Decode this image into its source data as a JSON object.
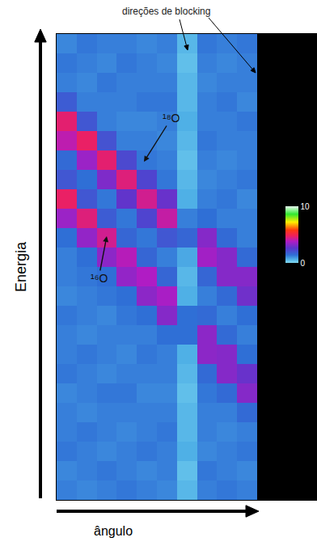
{
  "chart_data": {
    "type": "heatmap",
    "xlabel": "ângulo",
    "ylabel": "Energia",
    "annotations": [
      "direções de blocking",
      "¹⁸O",
      "¹⁶O"
    ],
    "x": [
      0.5,
      1.5,
      2.5,
      3.5,
      4.5,
      5.5,
      6.5,
      7.5,
      8.5,
      9.5
    ],
    "y": [
      0.5,
      1.5,
      2.5,
      3.5,
      4.5,
      5.5,
      6.5,
      7.5,
      8.5,
      9.5,
      10.5,
      11.5,
      12.5,
      13.5,
      14.5,
      15.5,
      16.5,
      17.5,
      18.5,
      19.5,
      20.5,
      21.5,
      22.5,
      23.5
    ],
    "z": [
      [
        1.2,
        1.1,
        1.2,
        1.3,
        1.2,
        1.1,
        0.5,
        1.2,
        1.3,
        1.2
      ],
      [
        1.1,
        1.2,
        1.3,
        1.2,
        1.1,
        1.2,
        0.4,
        1.3,
        1.2,
        1.1
      ],
      [
        1.3,
        1.2,
        1.1,
        1.2,
        1.3,
        1.2,
        0.6,
        1.1,
        1.2,
        1.3
      ],
      [
        1.2,
        1.3,
        1.2,
        1.1,
        1.2,
        1.3,
        0.5,
        1.2,
        1.1,
        1.2
      ],
      [
        1.2,
        1.1,
        1.2,
        1.2,
        1.2,
        1.2,
        0.5,
        1.2,
        1.2,
        1.5
      ],
      [
        1.1,
        1.2,
        1.3,
        1.3,
        1.1,
        1.1,
        0.4,
        1.3,
        1.5,
        3.2
      ],
      [
        1.3,
        1.2,
        1.1,
        1.2,
        1.2,
        1.2,
        0.5,
        1.5,
        3.2,
        2.8
      ],
      [
        1.2,
        1.3,
        1.2,
        1.1,
        1.3,
        1.2,
        0.6,
        3.3,
        3.2,
        1.4
      ],
      [
        1.2,
        1.1,
        1.2,
        1.2,
        1.2,
        1.4,
        1.4,
        3.3,
        1.5,
        1.2
      ],
      [
        1.3,
        1.2,
        1.1,
        1.3,
        1.4,
        3.2,
        1.4,
        1.5,
        1.2,
        1.4
      ],
      [
        1.1,
        1.2,
        1.3,
        1.4,
        3.3,
        3.7,
        0.6,
        1.2,
        1.5,
        2.9
      ],
      [
        1.2,
        1.3,
        1.4,
        3.4,
        3.8,
        1.6,
        0.5,
        1.6,
        3.2,
        3.2
      ],
      [
        1.2,
        1.4,
        3.3,
        3.9,
        1.6,
        1.2,
        0.7,
        3.6,
        3.2,
        1.5
      ],
      [
        1.4,
        3.4,
        4.3,
        1.6,
        1.3,
        1.9,
        1.6,
        3.2,
        1.5,
        1.2
      ],
      [
        3.5,
        4.5,
        1.8,
        1.3,
        2.3,
        4.1,
        1.2,
        1.4,
        1.2,
        1.2
      ],
      [
        4.7,
        1.9,
        1.3,
        2.7,
        4.3,
        2.8,
        0.6,
        1.2,
        1.3,
        1.1
      ],
      [
        1.9,
        1.4,
        3.1,
        4.5,
        2.3,
        1.3,
        0.5,
        1.1,
        1.2,
        1.3
      ],
      [
        1.5,
        3.5,
        4.6,
        2.2,
        1.3,
        1.2,
        0.4,
        1.2,
        1.1,
        1.2
      ],
      [
        4.0,
        4.7,
        2.0,
        1.2,
        1.2,
        1.1,
        0.5,
        1.3,
        1.2,
        1.2
      ],
      [
        4.6,
        1.9,
        1.2,
        1.1,
        1.1,
        1.2,
        0.6,
        1.2,
        1.2,
        1.3
      ],
      [
        1.8,
        1.2,
        1.2,
        1.2,
        1.3,
        1.3,
        0.5,
        1.2,
        1.3,
        1.1
      ],
      [
        1.2,
        1.1,
        1.3,
        1.2,
        1.2,
        1.2,
        0.5,
        1.1,
        1.2,
        1.2
      ],
      [
        1.3,
        1.2,
        1.1,
        1.3,
        1.2,
        1.1,
        0.4,
        1.2,
        1.1,
        1.2
      ],
      [
        1.1,
        1.3,
        1.2,
        1.2,
        1.1,
        1.2,
        0.5,
        1.3,
        1.2,
        1.3
      ]
    ],
    "xlim": [
      0,
      13
    ],
    "ylim": [
      0,
      24
    ],
    "xticks": [],
    "yticks": [],
    "tick_labels": false,
    "grid": false,
    "colorbar": {
      "range": [
        0,
        10
      ],
      "ticks": [
        0,
        10
      ]
    }
  }
}
